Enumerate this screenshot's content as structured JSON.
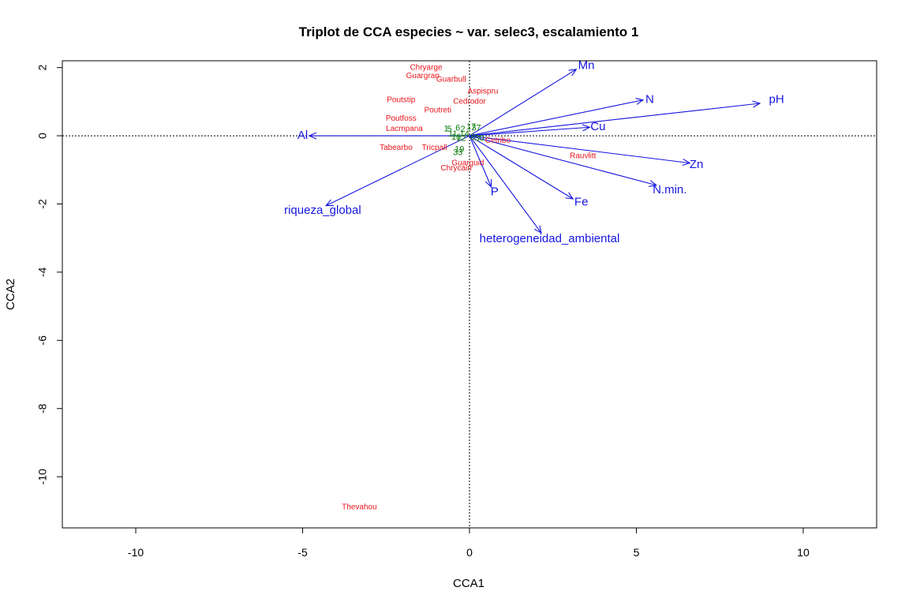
{
  "chart_data": {
    "type": "scatter",
    "title": "Triplot de CCA especies ~ var. selec3, escalamiento 1",
    "xlabel": "CCA1",
    "ylabel": "CCA2",
    "xlim": [
      -12.2,
      12.2
    ],
    "ylim": [
      -11.5,
      2.2
    ],
    "x_ticks": [
      -10,
      -5,
      0,
      5,
      10
    ],
    "y_ticks": [
      2,
      0,
      -2,
      -4,
      -6,
      -8,
      -10
    ],
    "x_tick_labels": [
      "-10",
      "-5",
      "0",
      "5",
      "10"
    ],
    "y_tick_labels": [
      "2",
      "0",
      "-2",
      "-4",
      "-6",
      "-8",
      "-10"
    ],
    "reference_lines": {
      "x": 0,
      "y": 0,
      "style": "dotted"
    },
    "colors": {
      "species": "#e8141b",
      "sites": "#0e7d0e",
      "arrows": "#1515e0",
      "axes": "#000000"
    },
    "species": [
      {
        "label": "Chryarge",
        "x": -1.3,
        "y": 2.0
      },
      {
        "label": "Guargran",
        "x": -1.4,
        "y": 1.75
      },
      {
        "label": "Guarbull",
        "x": -0.55,
        "y": 1.65
      },
      {
        "label": "Aspispru",
        "x": 0.4,
        "y": 1.3
      },
      {
        "label": "Poutstip",
        "x": -2.05,
        "y": 1.05
      },
      {
        "label": "Cedrodor",
        "x": 0.0,
        "y": 1.0
      },
      {
        "label": "Poutreti",
        "x": -0.95,
        "y": 0.75
      },
      {
        "label": "Poutfoss",
        "x": -2.05,
        "y": 0.5
      },
      {
        "label": "Lacmpana",
        "x": -1.95,
        "y": 0.2
      },
      {
        "label": "Tabearbo",
        "x": -2.2,
        "y": -0.35
      },
      {
        "label": "Tricpall",
        "x": -1.05,
        "y": -0.35
      },
      {
        "label": "Rauvlitt",
        "x": 3.4,
        "y": -0.6
      },
      {
        "label": "Guarguid",
        "x": -0.05,
        "y": -0.8
      },
      {
        "label": "Chrycain",
        "x": -0.4,
        "y": -0.95
      },
      {
        "label": "Thevahou",
        "x": -3.3,
        "y": -10.9
      },
      {
        "label": "Cetribo",
        "x": 0.85,
        "y": -0.15
      }
    ],
    "sites": [
      {
        "label": "1",
        "x": -0.7,
        "y": 0.2
      },
      {
        "label": "5",
        "x": -0.6,
        "y": 0.18
      },
      {
        "label": "6",
        "x": -0.35,
        "y": 0.22
      },
      {
        "label": "17",
        "x": 0.05,
        "y": 0.25
      },
      {
        "label": "37",
        "x": 0.2,
        "y": 0.22
      },
      {
        "label": "2",
        "x": -0.2,
        "y": 0.18
      },
      {
        "label": "11",
        "x": -0.5,
        "y": 0.05
      },
      {
        "label": "14",
        "x": -0.15,
        "y": 0.05
      },
      {
        "label": "16",
        "x": -0.4,
        "y": -0.05
      },
      {
        "label": "12",
        "x": -0.25,
        "y": -0.08
      },
      {
        "label": "8",
        "x": 0.1,
        "y": -0.05
      },
      {
        "label": "30",
        "x": 0.3,
        "y": -0.08
      },
      {
        "label": "19",
        "x": -0.3,
        "y": -0.4
      },
      {
        "label": "33",
        "x": -0.35,
        "y": -0.5
      }
    ],
    "arrows": [
      {
        "label": "Mn",
        "x": 3.2,
        "y": 1.95,
        "lx": 3.5,
        "ly": 2.05
      },
      {
        "label": "N",
        "x": 5.2,
        "y": 1.05,
        "lx": 5.4,
        "ly": 1.05
      },
      {
        "label": "pH",
        "x": 8.7,
        "y": 0.95,
        "lx": 9.2,
        "ly": 1.05
      },
      {
        "label": "Cu",
        "x": 3.6,
        "y": 0.25,
        "lx": 3.85,
        "ly": 0.25
      },
      {
        "label": "Al",
        "x": -4.8,
        "y": 0.0,
        "lx": -5.0,
        "ly": 0.0
      },
      {
        "label": "Zn",
        "x": 6.6,
        "y": -0.8,
        "lx": 6.8,
        "ly": -0.85
      },
      {
        "label": "N.min.",
        "x": 5.6,
        "y": -1.45,
        "lx": 6.0,
        "ly": -1.6
      },
      {
        "label": "Fe",
        "x": 3.1,
        "y": -1.85,
        "lx": 3.35,
        "ly": -1.95
      },
      {
        "label": "P",
        "x": 0.65,
        "y": -1.5,
        "lx": 0.75,
        "ly": -1.65
      },
      {
        "label": "riqueza_global",
        "x": -4.3,
        "y": -2.05,
        "lx": -4.4,
        "ly": -2.2
      },
      {
        "label": "heterogeneidad_ambiental",
        "x": 2.15,
        "y": -2.85,
        "lx": 2.4,
        "ly": -3.03
      }
    ]
  }
}
